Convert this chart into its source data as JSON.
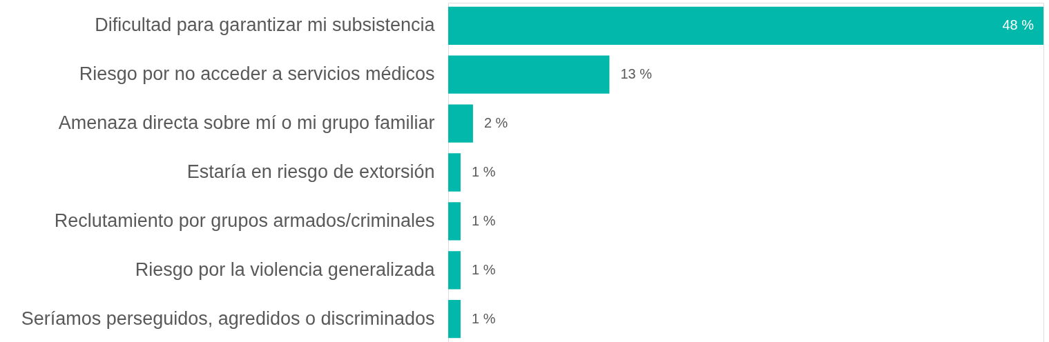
{
  "chart_data": {
    "type": "bar",
    "orientation": "horizontal",
    "color": "#02b8aa",
    "categories": [
      "Dificultad para garantizar mi subsistencia",
      "Riesgo por no acceder a servicios médicos",
      "Amenaza directa sobre mí o mi grupo familiar",
      "Estaría en riesgo de extorsión",
      "Reclutamiento por grupos armados/criminales",
      "Riesgo por la violencia generalizada",
      "Seríamos perseguidos, agredidos o discriminados"
    ],
    "values": [
      48,
      13,
      2,
      1,
      1,
      1,
      1
    ],
    "value_labels": [
      "48 %",
      "13 %",
      "2 %",
      "1 %",
      "1 %",
      "1 %",
      "1 %"
    ]
  }
}
